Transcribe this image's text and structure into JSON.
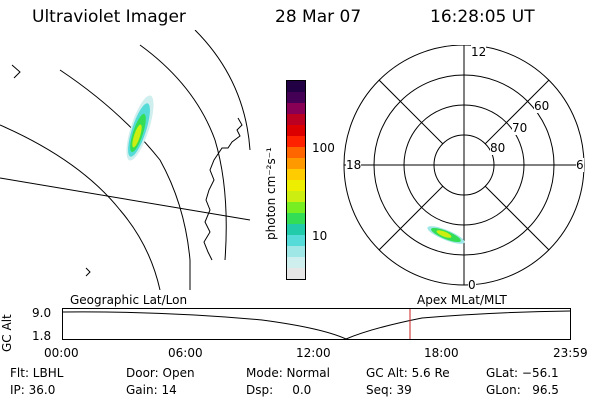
{
  "header": {
    "instrument": "Ultraviolet Imager",
    "date": "28 Mar 07",
    "time": "16:28:05 UT"
  },
  "colorbar": {
    "unit_label": "photon cm⁻²s⁻¹",
    "tick_100": "100",
    "tick_10": "10",
    "colors": [
      "#e6e6e6",
      "#cfeeee",
      "#9fe6e6",
      "#55dcd8",
      "#22ccaa",
      "#33dd55",
      "#77ee22",
      "#ccee11",
      "#eeee00",
      "#ffcc00",
      "#ff9900",
      "#ff6600",
      "#ff2200",
      "#dd0000",
      "#bb0022",
      "#880055",
      "#440055",
      "#220044"
    ]
  },
  "polar": {
    "mlt_top": "12",
    "mlt_left": "18",
    "mlt_right": "6",
    "mlt_bottom": "0",
    "lat_60": "60",
    "lat_70": "70",
    "lat_80": "80"
  },
  "timeline": {
    "y_axis_label": "GC Alt",
    "y_top": "9.0",
    "y_bottom": "1.8",
    "left_title": "Geographic Lat/Lon",
    "right_title": "Apex MLat/MLT",
    "ticks": [
      "00:00",
      "06:00",
      "12:00",
      "18:00",
      "23:59"
    ],
    "marker_color": "#cc2222"
  },
  "status": {
    "flt": "Flt: LBHL",
    "ip": "IP: 36.0",
    "door": "Door: Open",
    "gain": "Gain: 14",
    "mode": "Mode: Normal",
    "dsp": "Dsp:     0.0",
    "gc_alt": "GC Alt: 5.6 Re",
    "seq": "Seq: 39",
    "glat": "GLat: −56.1",
    "glon": "GLon:   96.5"
  }
}
